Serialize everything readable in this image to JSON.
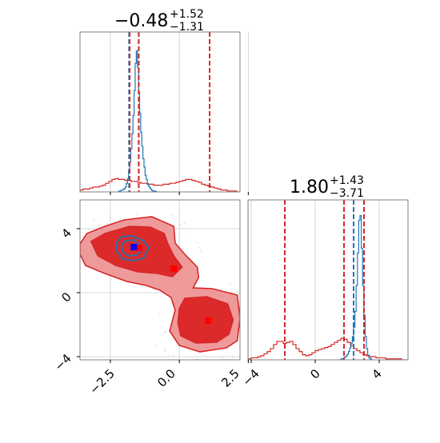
{
  "chart_data": {
    "type": "corner",
    "parameters": [
      {
        "title_value": "−0.48",
        "title_plus": "+1.52",
        "title_minus": "−1.31",
        "range": [
          -3.6,
          2.2
        ],
        "ticks": [
          -2.5,
          0.0,
          2.5
        ],
        "tick_labels": [
          "−2.5",
          "0.0",
          "2.5"
        ]
      },
      {
        "title_value": "1.80",
        "title_plus": "+1.43",
        "title_minus": "−3.71",
        "range": [
          -4.2,
          5.8
        ],
        "ticks": [
          -4,
          0,
          4
        ],
        "tick_labels": [
          "−4",
          "0",
          "4"
        ]
      }
    ],
    "colors": {
      "red": "#d62728",
      "blue": "#1f77b4",
      "fill_dark": "#dc2a2a",
      "fill_light": "#ef9a9a",
      "grid": "#cccccc"
    },
    "grid": true,
    "red_quantile_lines": {
      "p0": [
        -1.8,
        -1.47,
        1.1
      ],
      "p1": [
        -1.9,
        1.8,
        3.05
      ]
    },
    "blue_quantile_lines": {
      "p0": [
        -1.82,
        -1.47
      ],
      "p1": [
        2.4,
        3.05
      ]
    },
    "red_markers": [
      [
        -1.45,
        2.8
      ],
      [
        -0.2,
        1.5
      ],
      [
        1.05,
        -1.75
      ]
    ],
    "blue_marker": [
      -1.65,
      2.85
    ],
    "hist_p0_red": {
      "edges_start": -3.6,
      "bin_width": 0.116,
      "counts": [
        2,
        3,
        3,
        4,
        5,
        5,
        6,
        7,
        9,
        11,
        13,
        14,
        13,
        13,
        12,
        12,
        11,
        11,
        10,
        9,
        9,
        8,
        8,
        7,
        7,
        7,
        8,
        8,
        9,
        9,
        10,
        11,
        12,
        13,
        13,
        12,
        11,
        10,
        8,
        7,
        6,
        5,
        4,
        3,
        2,
        2,
        1,
        1,
        1,
        0
      ]
    },
    "hist_p0_blue": {
      "edges_start": -2.2,
      "bin_width": 0.04,
      "counts": [
        1,
        1,
        2,
        2,
        3,
        4,
        6,
        10,
        16,
        25,
        36,
        52,
        70,
        92,
        122,
        155,
        170,
        150,
        120,
        95,
        72,
        55,
        40,
        30,
        20,
        15,
        10,
        7,
        5,
        3,
        2,
        1,
        1,
        1,
        0
      ]
    },
    "hist_p1_red": {
      "edges_start": -4.2,
      "bin_width": 0.2,
      "counts": [
        1,
        2,
        2,
        3,
        4,
        6,
        8,
        11,
        15,
        18,
        18,
        16,
        17,
        18,
        15,
        11,
        8,
        5,
        4,
        5,
        7,
        9,
        10,
        11,
        12,
        13,
        15,
        17,
        19,
        21,
        20,
        17,
        14,
        11,
        9,
        7,
        5,
        4,
        3,
        3,
        2,
        2,
        2,
        1,
        1,
        1,
        1,
        1,
        0,
        0
      ]
    },
    "hist_p1_blue": {
      "edges_start": 1.6,
      "bin_width": 0.08,
      "counts": [
        1,
        1,
        2,
        3,
        4,
        6,
        9,
        13,
        18,
        25,
        35,
        52,
        80,
        115,
        150,
        155,
        120,
        80,
        48,
        25,
        12,
        5,
        2,
        1,
        0
      ]
    },
    "contours_red": [
      {
        "level": "outer",
        "points": [
          [
            -3.6,
            3.05
          ],
          [
            -3.35,
            3.7
          ],
          [
            -2.7,
            4.15
          ],
          [
            -2.0,
            4.55
          ],
          [
            -1.0,
            4.75
          ],
          [
            -0.2,
            4.15
          ],
          [
            -0.15,
            3.1
          ],
          [
            0.2,
            2.4
          ],
          [
            0.65,
            1.6
          ],
          [
            0.7,
            0.95
          ],
          [
            0.5,
            0.3
          ],
          [
            1.2,
            0.25
          ],
          [
            2.1,
            -0.15
          ],
          [
            2.2,
            -1.6
          ],
          [
            2.1,
            -3.0
          ],
          [
            1.7,
            -3.45
          ],
          [
            0.75,
            -3.7
          ],
          [
            0.0,
            -3.3
          ],
          [
            -0.35,
            -2.4
          ],
          [
            -0.15,
            -1.1
          ],
          [
            -0.3,
            -0.3
          ],
          [
            -0.7,
            0.15
          ],
          [
            -1.2,
            0.45
          ],
          [
            -1.9,
            0.7
          ],
          [
            -2.7,
            1.2
          ],
          [
            -3.4,
            1.7
          ],
          [
            -3.6,
            2.4
          ]
        ]
      },
      {
        "level": "inner",
        "points": [
          [
            -3.2,
            3.2
          ],
          [
            -2.7,
            3.7
          ],
          [
            -1.8,
            4.15
          ],
          [
            -1.05,
            4.1
          ],
          [
            -0.55,
            3.7
          ],
          [
            -0.4,
            3.0
          ],
          [
            -0.2,
            2.3
          ],
          [
            0.1,
            1.6
          ],
          [
            -0.25,
            1.0
          ],
          [
            -0.8,
            1.2
          ],
          [
            -1.5,
            1.3
          ],
          [
            -2.3,
            1.7
          ],
          [
            -2.95,
            2.3
          ]
        ]
      },
      {
        "level": "inner",
        "points": [
          [
            0.2,
            -0.35
          ],
          [
            1.0,
            -0.25
          ],
          [
            1.75,
            -0.7
          ],
          [
            1.95,
            -1.7
          ],
          [
            1.8,
            -2.6
          ],
          [
            1.35,
            -3.1
          ],
          [
            0.6,
            -3.15
          ],
          [
            0.05,
            -2.7
          ],
          [
            -0.05,
            -1.9
          ],
          [
            0.0,
            -1.0
          ]
        ]
      }
    ],
    "contours_blue": [
      {
        "level": "outer",
        "points": [
          [
            -2.1,
            3.5
          ],
          [
            -1.7,
            3.55
          ],
          [
            -1.3,
            3.25
          ],
          [
            -1.1,
            2.8
          ],
          [
            -1.3,
            2.15
          ],
          [
            -1.65,
            2.0
          ],
          [
            -2.05,
            2.1
          ],
          [
            -2.25,
            2.55
          ],
          [
            -2.3,
            3.1
          ]
        ]
      },
      {
        "level": "inner",
        "points": [
          [
            -1.95,
            3.25
          ],
          [
            -1.65,
            3.3
          ],
          [
            -1.45,
            3.05
          ],
          [
            -1.35,
            2.7
          ],
          [
            -1.55,
            2.35
          ],
          [
            -1.85,
            2.3
          ],
          [
            -2.05,
            2.55
          ],
          [
            -2.1,
            2.95
          ]
        ]
      }
    ]
  }
}
